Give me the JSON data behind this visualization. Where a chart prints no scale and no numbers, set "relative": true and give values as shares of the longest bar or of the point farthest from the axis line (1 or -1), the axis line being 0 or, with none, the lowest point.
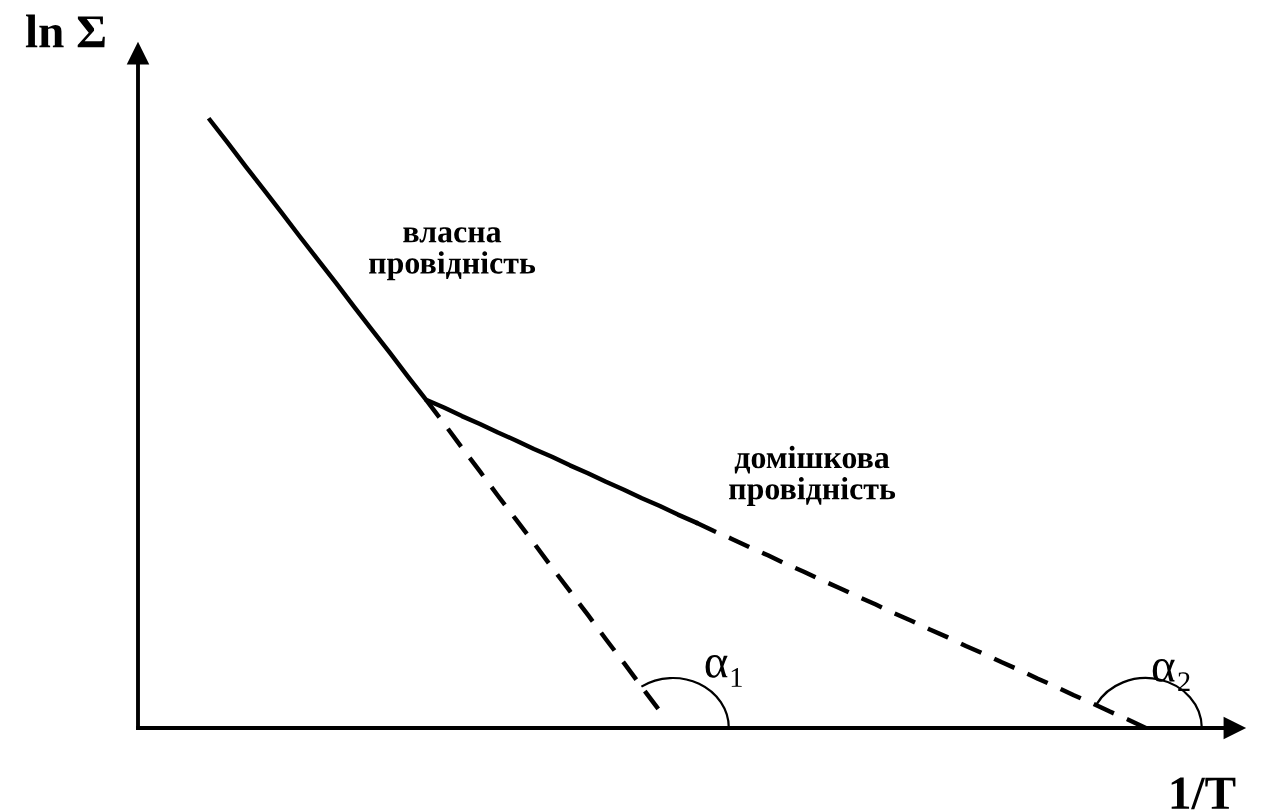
{
  "chart_data": {
    "type": "line",
    "relative": true,
    "xlabel": "1/T",
    "ylabel": "ln Σ",
    "marker": "none",
    "categories": [
      null,
      null,
      null,
      null,
      null,
      null,
      null,
      null,
      null,
      null,
      null,
      null,
      null,
      null,
      null,
      null,
      null,
      null,
      null,
      null,
      null,
      null,
      null,
      null,
      null,
      null,
      null,
      null,
      null,
      null,
      null,
      null,
      null,
      null,
      null,
      null,
      null,
      null,
      null,
      null,
      null,
      null,
      null,
      null,
      null,
      null,
      null,
      null,
      null,
      null,
      null,
      null,
      null
    ],
    "series": [
      {
        "color": "#000000",
        "line_style": "solid",
        "values": [
          1.0,
          0.962,
          0.923,
          0.885,
          0.847,
          0.808,
          0.77,
          0.732,
          0.693,
          0.655,
          0.617,
          0.578,
          0.54,
          0.527,
          0.513,
          0.5,
          0.486,
          0.473,
          0.459,
          0.446,
          0.432,
          0.419,
          0.405,
          0.392,
          0.378,
          0.365,
          0.351,
          0.338,
          null,
          null,
          null,
          null,
          null,
          null,
          null,
          null,
          null,
          null,
          null,
          null,
          null,
          null,
          null,
          null,
          null,
          null,
          null,
          null,
          null,
          null,
          null,
          null,
          null
        ]
      },
      {
        "color": "#000000",
        "line_style": "dashed",
        "values": [
          null,
          null,
          null,
          null,
          null,
          null,
          null,
          null,
          null,
          null,
          null,
          null,
          null,
          null,
          null,
          null,
          null,
          null,
          null,
          null,
          null,
          null,
          null,
          null,
          null,
          null,
          null,
          0.338,
          0.324,
          0.311,
          0.297,
          0.284,
          0.27,
          0.257,
          0.243,
          0.23,
          0.216,
          0.203,
          0.189,
          0.176,
          0.162,
          0.149,
          0.135,
          0.122,
          0.108,
          0.095,
          0.081,
          0.068,
          0.054,
          0.041,
          0.027,
          0.014,
          0.0
        ]
      },
      {
        "color": "#000000",
        "line_style": "dashed",
        "values": [
          null,
          null,
          null,
          null,
          null,
          null,
          null,
          null,
          null,
          null,
          null,
          null,
          0.54,
          0.501,
          0.461,
          0.422,
          0.382,
          0.343,
          0.304,
          0.264,
          0.225,
          0.186,
          0.146,
          0.107,
          0.067,
          0.028,
          null,
          null,
          null,
          null,
          null,
          null,
          null,
          null,
          null,
          null,
          null,
          null,
          null,
          null,
          null,
          null,
          null,
          null,
          null,
          null,
          null,
          null,
          null,
          null,
          null,
          null,
          null
        ]
      }
    ],
    "annotations": [
      "власна\nпровідність",
      "домішкова\nпровідність",
      "α₁",
      "α₂"
    ]
  }
}
